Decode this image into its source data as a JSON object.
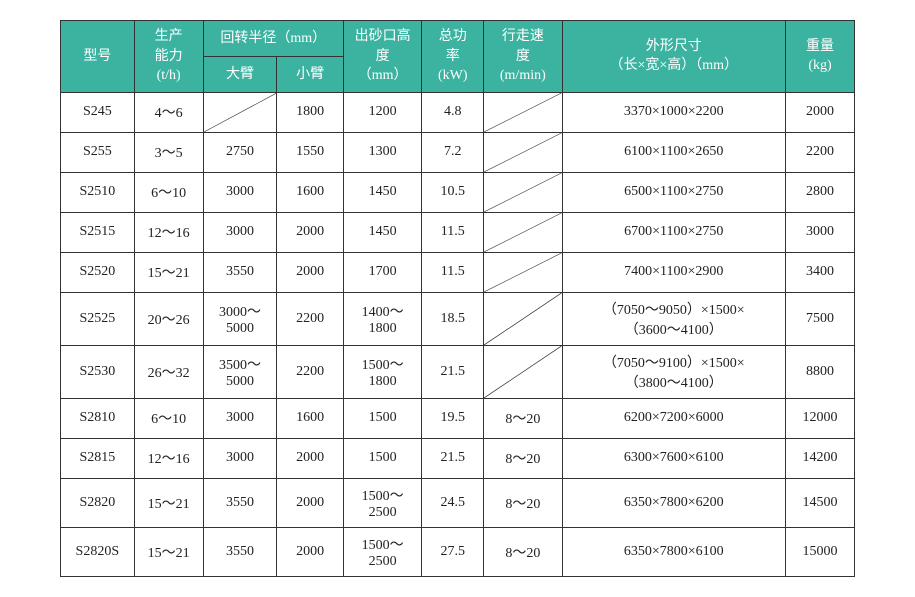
{
  "header": {
    "model": "型号",
    "capacity_line1": "生产",
    "capacity_line2": "能力",
    "capacity_unit": "(t/h)",
    "turning_radius": "回转半径（mm）",
    "big_arm": "大臂",
    "small_arm": "小臂",
    "outlet_line1": "出砂口高",
    "outlet_line2": "度",
    "outlet_unit": "（mm）",
    "power_line1": "总功",
    "power_line2": "率",
    "power_unit": "(kW)",
    "speed_line1": "行走速",
    "speed_line2": "度",
    "speed_unit": "(m/min)",
    "dimensions_line1": "外形尺寸",
    "dimensions_line2": "（长×宽×高）（mm）",
    "weight_line1": "重量",
    "weight_unit": "(kg)"
  },
  "rows": [
    {
      "model": "S245",
      "cap": "4～6",
      "arm1": "DIAG",
      "arm2": "1800",
      "height": "1200",
      "power": "4.8",
      "speed": "DIAG",
      "dim": "3370×1000×2200",
      "weight": "2000"
    },
    {
      "model": "S255",
      "cap": "3～5",
      "arm1": "2750",
      "arm2": "1550",
      "height": "1300",
      "power": "7.2",
      "speed": "DIAG",
      "dim": "6100×1100×2650",
      "weight": "2200"
    },
    {
      "model": "S2510",
      "cap": "6～10",
      "arm1": "3000",
      "arm2": "1600",
      "height": "1450",
      "power": "10.5",
      "speed": "DIAG",
      "dim": "6500×1100×2750",
      "weight": "2800"
    },
    {
      "model": "S2515",
      "cap": "12～16",
      "arm1": "3000",
      "arm2": "2000",
      "height": "1450",
      "power": "11.5",
      "speed": "DIAG",
      "dim": "6700×1100×2750",
      "weight": "3000"
    },
    {
      "model": "S2520",
      "cap": "15～21",
      "arm1": "3550",
      "arm2": "2000",
      "height": "1700",
      "power": "11.5",
      "speed": "DIAG",
      "dim": "7400×1100×2900",
      "weight": "3400"
    },
    {
      "model": "S2525",
      "cap": "20～26",
      "arm1": "3000～5000",
      "arm2": "2200",
      "height": "1400～1800",
      "power": "18.5",
      "speed": "DIAG",
      "dim": "（7050～9050）×1500×（3600～4100）",
      "weight": "7500",
      "tall": true
    },
    {
      "model": "S2530",
      "cap": "26～32",
      "arm1": "3500～5000",
      "arm2": "2200",
      "height": "1500～1800",
      "power": "21.5",
      "speed": "DIAG",
      "dim": "（7050～9100）×1500×（3800～4100）",
      "weight": "8800",
      "tall": true
    },
    {
      "model": "S2810",
      "cap": "6～10",
      "arm1": "3000",
      "arm2": "1600",
      "height": "1500",
      "power": "19.5",
      "speed": "8～20",
      "dim": "6200×7200×6000",
      "weight": "12000"
    },
    {
      "model": "S2815",
      "cap": "12～16",
      "arm1": "3000",
      "arm2": "2000",
      "height": "1500",
      "power": "21.5",
      "speed": "8～20",
      "dim": "6300×7600×6100",
      "weight": "14200"
    },
    {
      "model": "S2820",
      "cap": "15～21",
      "arm1": "3550",
      "arm2": "2000",
      "height": "1500～2500",
      "power": "24.5",
      "speed": "8～20",
      "dim": "6350×7800×6200",
      "weight": "14500",
      "tall": true
    },
    {
      "model": "S2820S",
      "cap": "15～21",
      "arm1": "3550",
      "arm2": "2000",
      "height": "1500～2500",
      "power": "27.5",
      "speed": "8～20",
      "dim": "6350×7800×6100",
      "weight": "15000",
      "tall": true
    }
  ],
  "style": {
    "header_bg": "#3bb3a0",
    "header_color": "#ffffff",
    "border_color": "#333333",
    "font_family": "SimSun",
    "cell_fontsize": 14
  }
}
